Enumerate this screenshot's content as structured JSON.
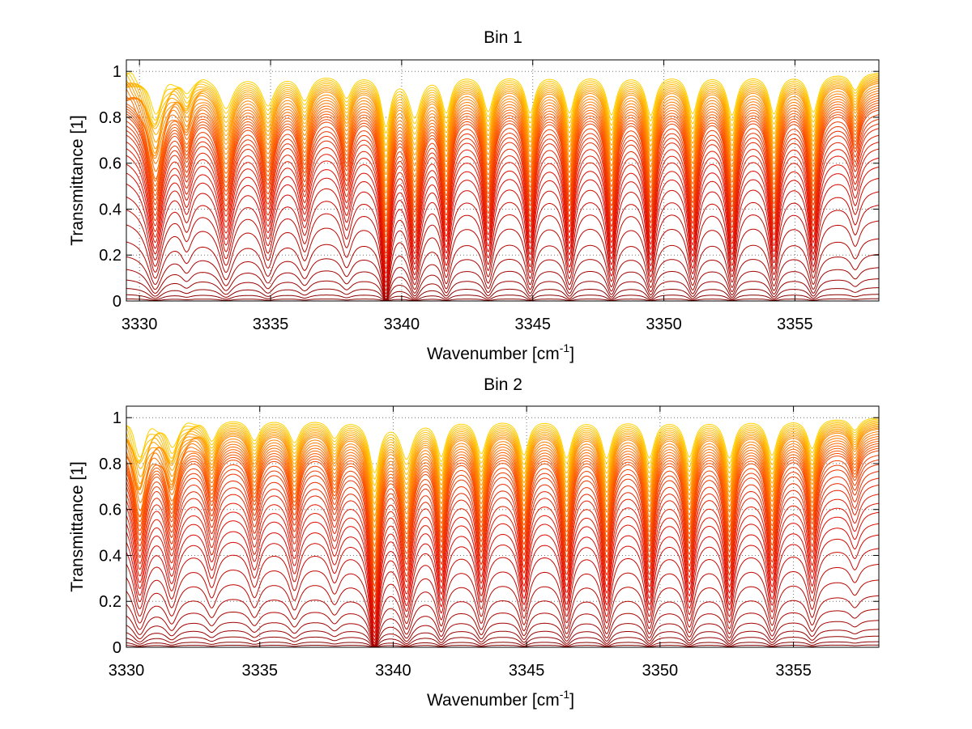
{
  "chart_data": [
    {
      "type": "line",
      "title": "Bin 1",
      "xlabel": "Wavenumber [cm",
      "xlabel_sup": "-1",
      "xlabel_end": "]",
      "ylabel": "Transmittance [1]",
      "xlim": [
        3329.5,
        3358.2
      ],
      "ylim": [
        0,
        1.05
      ],
      "xticks": [
        3330,
        3335,
        3340,
        3345,
        3350,
        3355
      ],
      "xtick_labels": [
        "3330",
        "3335",
        "3340",
        "3345",
        "3350",
        "3355"
      ],
      "yticks": [
        0,
        0.2,
        0.4,
        0.6,
        0.8,
        1
      ],
      "ytick_labels": [
        "0",
        "0.2",
        "0.4",
        "0.6",
        "0.8",
        "1"
      ],
      "grid": true,
      "series_count": 40,
      "baseline_levels": [
        1.0,
        0.995,
        0.99,
        0.985,
        0.98,
        0.975,
        0.97,
        0.965,
        0.96,
        0.95,
        0.94,
        0.93,
        0.92,
        0.91,
        0.9,
        0.89,
        0.88,
        0.87,
        0.86,
        0.85,
        0.83,
        0.81,
        0.79,
        0.77,
        0.74,
        0.71,
        0.68,
        0.64,
        0.6,
        0.55,
        0.49,
        0.43,
        0.36,
        0.28,
        0.21,
        0.15,
        0.1,
        0.06,
        0.03,
        0.01
      ],
      "absorption_lines": [
        {
          "x": 3330.6,
          "depth": 0.62,
          "width": 0.35
        },
        {
          "x": 3331.8,
          "depth": 0.3,
          "width": 0.25
        },
        {
          "x": 3333.3,
          "depth": 0.55,
          "width": 0.33
        },
        {
          "x": 3334.9,
          "depth": 0.5,
          "width": 0.3
        },
        {
          "x": 3336.3,
          "depth": 0.42,
          "width": 0.27
        },
        {
          "x": 3337.9,
          "depth": 0.38,
          "width": 0.25
        },
        {
          "x": 3339.4,
          "depth": 0.82,
          "width": 0.22
        },
        {
          "x": 3340.5,
          "depth": 0.68,
          "width": 0.28
        },
        {
          "x": 3341.7,
          "depth": 0.6,
          "width": 0.22
        },
        {
          "x": 3343.3,
          "depth": 0.6,
          "width": 0.24
        },
        {
          "x": 3344.9,
          "depth": 0.62,
          "width": 0.22
        },
        {
          "x": 3346.4,
          "depth": 0.62,
          "width": 0.23
        },
        {
          "x": 3348.0,
          "depth": 0.65,
          "width": 0.23
        },
        {
          "x": 3349.5,
          "depth": 0.66,
          "width": 0.23
        },
        {
          "x": 3351.1,
          "depth": 0.63,
          "width": 0.23
        },
        {
          "x": 3352.6,
          "depth": 0.66,
          "width": 0.23
        },
        {
          "x": 3354.2,
          "depth": 0.64,
          "width": 0.23
        },
        {
          "x": 3355.7,
          "depth": 0.62,
          "width": 0.23
        },
        {
          "x": 3357.3,
          "depth": 0.28,
          "width": 0.22
        }
      ]
    },
    {
      "type": "line",
      "title": "Bin 2",
      "xlabel": "Wavenumber [cm",
      "xlabel_sup": "-1",
      "xlabel_end": "]",
      "ylabel": "Transmittance [1]",
      "xlim": [
        3330,
        3358.2
      ],
      "ylim": [
        0,
        1.05
      ],
      "xticks": [
        3330,
        3335,
        3340,
        3345,
        3350,
        3355
      ],
      "xtick_labels": [
        "3330",
        "3335",
        "3340",
        "3345",
        "3350",
        "3355"
      ],
      "yticks": [
        0,
        0.2,
        0.4,
        0.6,
        0.8,
        1
      ],
      "ytick_labels": [
        "0",
        "0.2",
        "0.4",
        "0.6",
        "0.8",
        "1"
      ],
      "grid": true,
      "series_count": 40,
      "baseline_levels": [
        1.005,
        1.0,
        0.995,
        0.99,
        0.985,
        0.98,
        0.975,
        0.97,
        0.965,
        0.96,
        0.95,
        0.94,
        0.93,
        0.92,
        0.91,
        0.9,
        0.89,
        0.88,
        0.87,
        0.85,
        0.83,
        0.81,
        0.78,
        0.75,
        0.72,
        0.68,
        0.64,
        0.6,
        0.55,
        0.5,
        0.44,
        0.37,
        0.3,
        0.23,
        0.17,
        0.12,
        0.08,
        0.05,
        0.025,
        0.01
      ],
      "absorption_lines": [
        {
          "x": 3330.5,
          "depth": 0.55,
          "width": 0.3
        },
        {
          "x": 3331.7,
          "depth": 0.45,
          "width": 0.28
        },
        {
          "x": 3333.2,
          "depth": 0.35,
          "width": 0.25
        },
        {
          "x": 3334.8,
          "depth": 0.35,
          "width": 0.25
        },
        {
          "x": 3336.3,
          "depth": 0.38,
          "width": 0.25
        },
        {
          "x": 3337.8,
          "depth": 0.3,
          "width": 0.25
        },
        {
          "x": 3339.3,
          "depth": 0.84,
          "width": 0.24
        },
        {
          "x": 3340.5,
          "depth": 0.62,
          "width": 0.28
        },
        {
          "x": 3341.8,
          "depth": 0.58,
          "width": 0.22
        },
        {
          "x": 3343.3,
          "depth": 0.55,
          "width": 0.23
        },
        {
          "x": 3344.9,
          "depth": 0.57,
          "width": 0.22
        },
        {
          "x": 3346.5,
          "depth": 0.62,
          "width": 0.23
        },
        {
          "x": 3348.0,
          "depth": 0.62,
          "width": 0.23
        },
        {
          "x": 3349.6,
          "depth": 0.62,
          "width": 0.23
        },
        {
          "x": 3351.1,
          "depth": 0.6,
          "width": 0.23
        },
        {
          "x": 3352.6,
          "depth": 0.62,
          "width": 0.23
        },
        {
          "x": 3354.2,
          "depth": 0.58,
          "width": 0.23
        },
        {
          "x": 3355.7,
          "depth": 0.48,
          "width": 0.22
        },
        {
          "x": 3357.3,
          "depth": 0.2,
          "width": 0.22
        }
      ]
    }
  ]
}
